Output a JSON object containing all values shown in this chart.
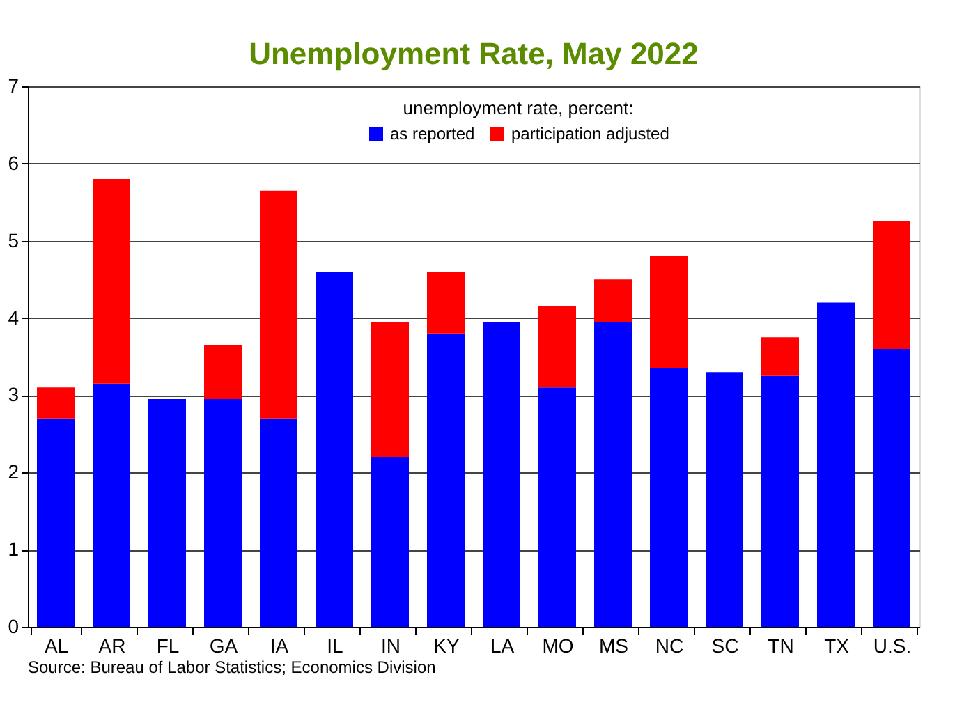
{
  "chart_data": {
    "type": "bar",
    "title": "Unemployment Rate, May 2022",
    "legend_title": "unemployment rate, percent:",
    "categories": [
      "AL",
      "AR",
      "FL",
      "GA",
      "IA",
      "IL",
      "IN",
      "KY",
      "LA",
      "MO",
      "MS",
      "NC",
      "SC",
      "TN",
      "TX",
      "U.S."
    ],
    "stacked": true,
    "series": [
      {
        "name": "as reported",
        "color": "#0000ff",
        "values": [
          2.7,
          3.15,
          2.95,
          2.95,
          2.7,
          4.6,
          2.2,
          3.8,
          3.95,
          3.1,
          3.95,
          3.35,
          3.3,
          3.25,
          4.2,
          3.6
        ]
      },
      {
        "name": "participation adjusted",
        "color": "#ff0000",
        "values": [
          0.4,
          2.65,
          null,
          0.7,
          2.95,
          null,
          1.75,
          0.8,
          null,
          1.05,
          0.55,
          1.45,
          null,
          0.5,
          null,
          1.65
        ]
      }
    ],
    "ylim": [
      0,
      7
    ],
    "yticks": [
      0,
      1,
      2,
      3,
      4,
      5,
      6,
      7
    ],
    "grid": "y",
    "legend": "top",
    "annotations": [
      "Source: Bureau of Labor Statistics; Economics Division"
    ]
  }
}
